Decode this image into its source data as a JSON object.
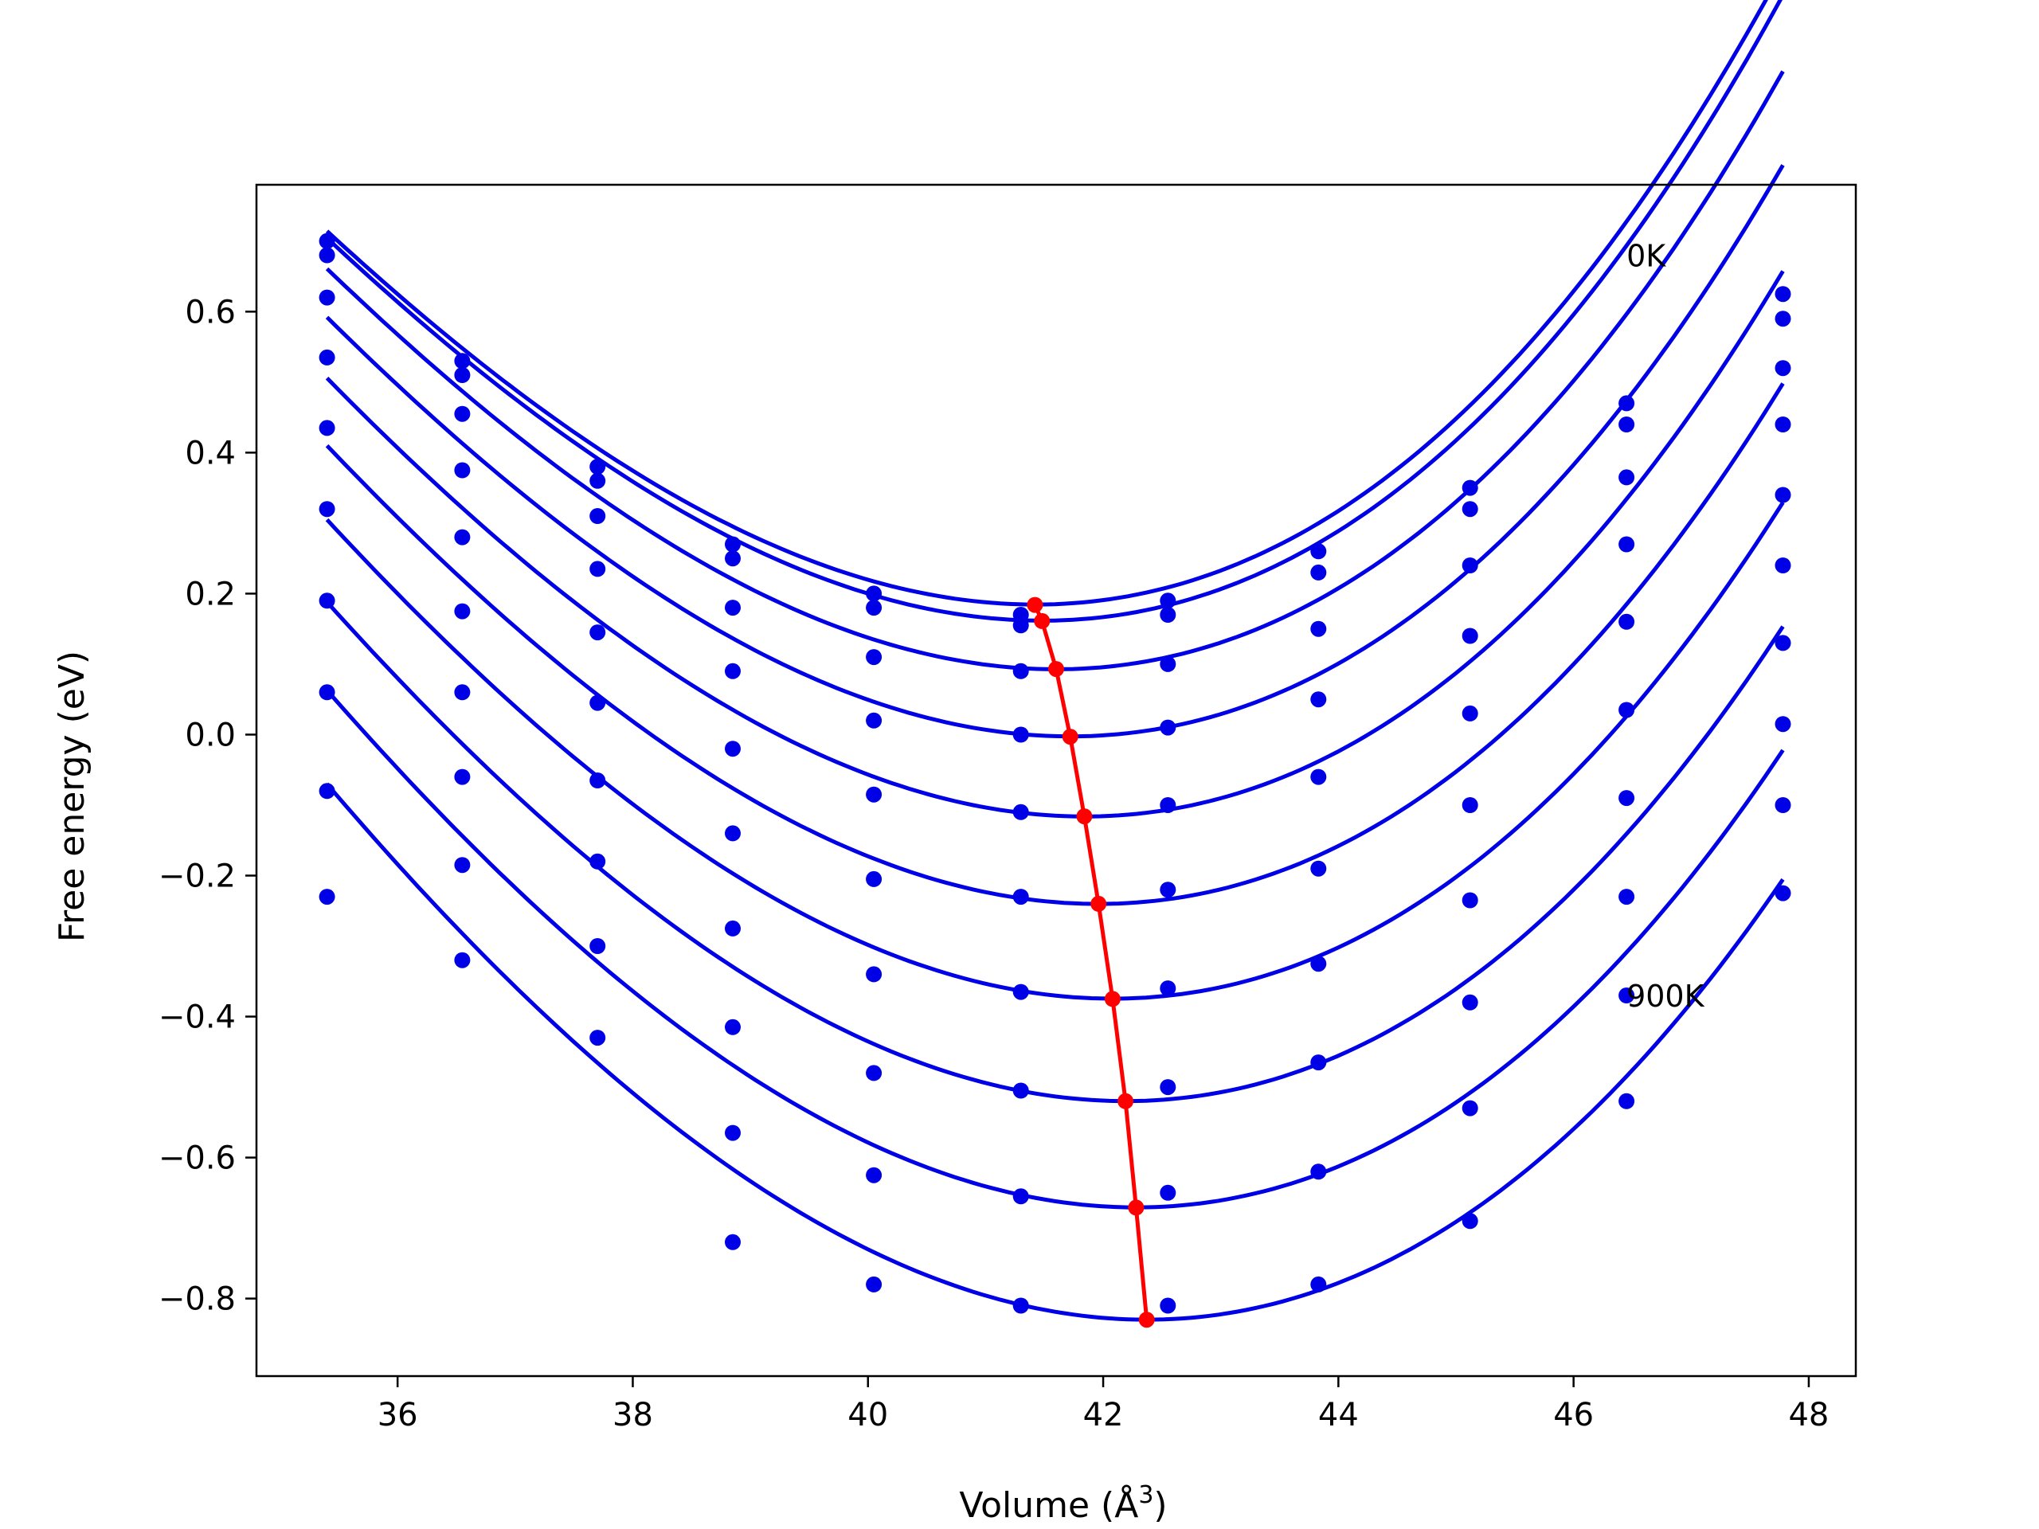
{
  "chart_data": {
    "type": "scatter",
    "title": "",
    "xlabel": "Volume (Å",
    "xlabel_sup": "3",
    "xlabel_close": ")",
    "ylabel": "Free energy (eV)",
    "xlim": [
      34.8,
      48.4
    ],
    "ylim": [
      -0.91,
      0.78
    ],
    "xticks": [
      36,
      38,
      40,
      42,
      44,
      46,
      48
    ],
    "xtick_labels": [
      "36",
      "38",
      "40",
      "42",
      "44",
      "46",
      "48"
    ],
    "yticks": [
      -0.8,
      -0.6,
      -0.4,
      -0.2,
      0.0,
      0.2,
      0.4,
      0.6
    ],
    "ytick_labels": [
      "−0.8",
      "−0.6",
      "−0.4",
      "−0.2",
      "0.0",
      "0.2",
      "0.4",
      "0.6"
    ],
    "grid": false,
    "annotations": [
      {
        "text": "0K",
        "x": 46.45,
        "y": 0.68
      },
      {
        "text": "900K",
        "x": 46.45,
        "y": -0.37
      }
    ],
    "colors": {
      "series": "#0000e6",
      "minima": "#ff0000",
      "axes": "#000000"
    },
    "volumes": [
      35.4,
      36.55,
      37.7,
      38.85,
      40.05,
      41.3,
      42.55,
      43.83,
      45.12,
      46.45,
      47.78
    ],
    "series": [
      {
        "fit": [
          0.18449,
          41.42,
          0.01835,
          0.00062
        ],
        "points": [
          0.7,
          0.53,
          0.38,
          0.27,
          0.2,
          0.17,
          0.19,
          0.26,
          0.35,
          0.47,
          0.625
        ]
      },
      {
        "fit": [
          0.16165,
          41.48,
          0.01845,
          0.00062
        ],
        "points": [
          0.68,
          0.51,
          0.36,
          0.25,
          0.18,
          0.155,
          0.17,
          0.23,
          0.32,
          0.44,
          0.59
        ]
      },
      {
        "fit": [
          0.09269,
          41.6,
          0.0185,
          0.0006
        ],
        "points": [
          0.62,
          0.455,
          0.31,
          0.18,
          0.11,
          0.09,
          0.1,
          0.15,
          0.24,
          0.365,
          0.52
        ]
      },
      {
        "fit": [
          -0.00251,
          41.72,
          0.01855,
          0.00058
        ],
        "points": [
          0.535,
          0.375,
          0.235,
          0.09,
          0.02,
          0.0,
          0.01,
          0.05,
          0.14,
          0.27,
          0.44
        ]
      },
      {
        "fit": [
          -0.11616,
          41.84,
          0.0186,
          0.00056
        ],
        "points": [
          0.435,
          0.28,
          0.145,
          -0.02,
          -0.085,
          -0.11,
          -0.1,
          -0.06,
          0.03,
          0.16,
          0.34
        ]
      },
      {
        "fit": [
          -0.24018,
          41.96,
          0.01865,
          0.00054
        ],
        "points": [
          0.32,
          0.175,
          0.045,
          -0.14,
          -0.205,
          -0.23,
          -0.22,
          -0.19,
          -0.1,
          0.035,
          0.24
        ]
      },
      {
        "fit": [
          -0.37455,
          42.08,
          0.0187,
          0.00052
        ],
        "points": [
          0.19,
          0.06,
          -0.065,
          -0.275,
          -0.34,
          -0.365,
          -0.36,
          -0.325,
          -0.235,
          -0.09,
          0.13
        ]
      },
      {
        "fit": [
          -0.51989,
          42.19,
          0.01875,
          0.0005
        ],
        "points": [
          0.06,
          -0.06,
          -0.18,
          -0.415,
          -0.48,
          -0.505,
          -0.5,
          -0.465,
          -0.38,
          -0.23,
          0.015
        ]
      },
      {
        "fit": [
          -0.67066,
          42.28,
          0.0188,
          0.00048
        ],
        "points": [
          -0.08,
          -0.185,
          -0.3,
          -0.565,
          -0.625,
          -0.655,
          -0.65,
          -0.62,
          -0.53,
          -0.37,
          -0.1
        ]
      },
      {
        "fit": [
          -0.82993,
          42.37,
          0.01885,
          0.00046
        ],
        "points": [
          -0.23,
          -0.32,
          -0.43,
          -0.72,
          -0.78,
          -0.81,
          -0.81,
          -0.78,
          -0.69,
          -0.52,
          -0.225
        ]
      }
    ],
    "minima": {
      "x": [
        41.42,
        41.48,
        41.6,
        41.72,
        41.84,
        41.96,
        42.08,
        42.19,
        42.28,
        42.37
      ],
      "y": [
        0.184,
        0.161,
        0.093,
        -0.003,
        -0.116,
        -0.24,
        -0.375,
        -0.52,
        -0.671,
        -0.83
      ]
    }
  }
}
